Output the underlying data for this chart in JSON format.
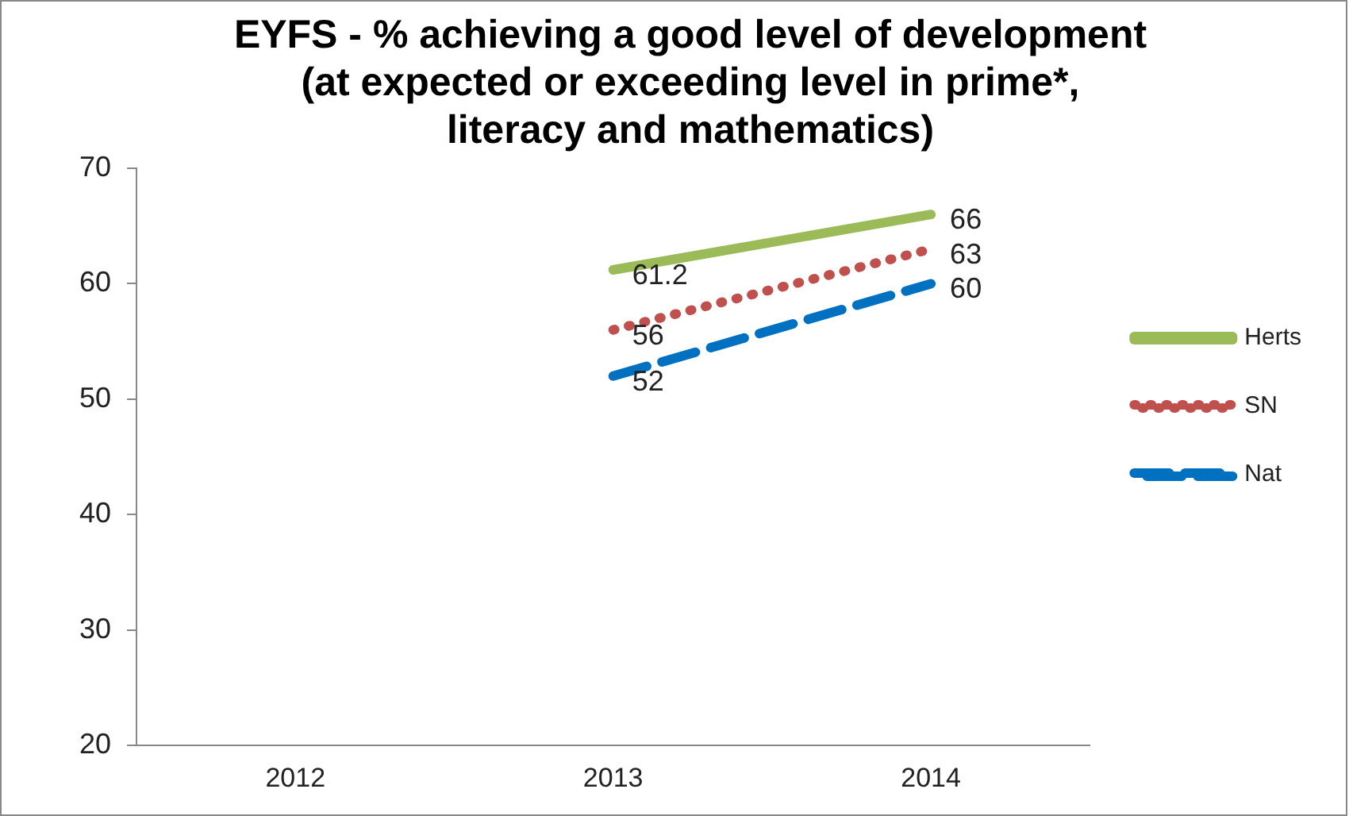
{
  "chart_data": {
    "type": "line",
    "title": [
      "EYFS - % achieving a good level of development",
      "(at expected or exceeding level in prime*,",
      "literacy and mathematics)"
    ],
    "categories": [
      "2012",
      "2013",
      "2014"
    ],
    "series": [
      {
        "name": "Herts",
        "color": "#9bbb59",
        "line_style": "solid",
        "values": [
          null,
          61.2,
          66
        ]
      },
      {
        "name": "SN",
        "color": "#c0504d",
        "line_style": "dotted",
        "values": [
          null,
          56,
          63
        ]
      },
      {
        "name": "Nat",
        "color": "#0070c0",
        "line_style": "dashed",
        "values": [
          null,
          52,
          60
        ]
      }
    ],
    "ylim": [
      20,
      70
    ],
    "yticks": [
      20,
      30,
      40,
      50,
      60,
      70
    ],
    "grid": false,
    "legend": "right",
    "marker": "none",
    "data_labels": true
  }
}
